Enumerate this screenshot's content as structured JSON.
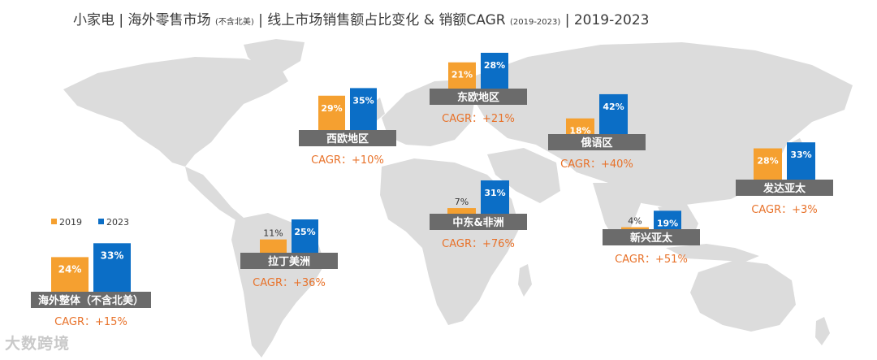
{
  "title": {
    "part1": "小家电 | 海外零售市场",
    "part2": "(不含北美)",
    "part3": "| 线上市场销售额占比变化 & 销额CAGR",
    "part4": "(2019-2023)",
    "part5": "| 2019-2023"
  },
  "watermark": "大数跨境",
  "chart_data": {
    "type": "bar",
    "title": "小家电 | 海外零售市场 (不含北美) | 线上市场销售额占比变化 & 销额CAGR (2019-2023) | 2019-2023",
    "legend": [
      {
        "name": "2019",
        "color": "#f5a030"
      },
      {
        "name": "2023",
        "color": "#0b6ec6"
      }
    ],
    "label_suffix": "%",
    "regions": [
      {
        "name": "海外整体（不含北美）",
        "v2019": 24,
        "v2023": 33,
        "cagr": "CAGR：+15%"
      },
      {
        "name": "拉丁美洲",
        "v2019": 11,
        "v2023": 25,
        "cagr": "CAGR：+36%"
      },
      {
        "name": "西欧地区",
        "v2019": 29,
        "v2023": 35,
        "cagr": "CAGR：+10%"
      },
      {
        "name": "东欧地区",
        "v2019": 21,
        "v2023": 28,
        "cagr": "CAGR：+21%"
      },
      {
        "name": "中东&非洲",
        "v2019": 7,
        "v2023": 31,
        "cagr": "CAGR：+76%"
      },
      {
        "name": "俄语区",
        "v2019": 18,
        "v2023": 42,
        "cagr": "CAGR：+40%"
      },
      {
        "name": "新兴亚太",
        "v2019": 4,
        "v2023": 19,
        "cagr": "CAGR：+51%"
      },
      {
        "name": "发达亚太",
        "v2019": 28,
        "v2023": 33,
        "cagr": "CAGR：+3%"
      }
    ]
  }
}
